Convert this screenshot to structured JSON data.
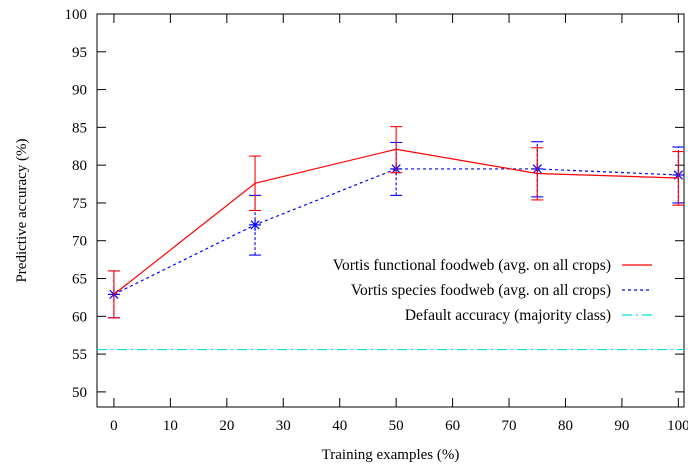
{
  "chart_data": {
    "type": "line",
    "title": "",
    "xlabel": "Training examples (%)",
    "ylabel": "Predictive accuracy (%)",
    "xlim": [
      -3,
      101
    ],
    "ylim": [
      48,
      100
    ],
    "xticks": [
      0,
      10,
      20,
      30,
      40,
      50,
      60,
      70,
      80,
      90,
      100
    ],
    "yticks": [
      50,
      55,
      60,
      65,
      70,
      75,
      80,
      85,
      90,
      95,
      100
    ],
    "grid": false,
    "legend_position": "lower-right",
    "series": [
      {
        "name": "Vortis functional foodweb (avg. on all crops)",
        "color": "#ff0000",
        "style": "solid",
        "marker": "none",
        "x": [
          0,
          25,
          50,
          75,
          100
        ],
        "y": [
          62.9,
          77.6,
          82.1,
          78.9,
          78.3
        ],
        "err_low": [
          59.8,
          74.0,
          79.0,
          75.4,
          74.7
        ],
        "err_high": [
          66.0,
          81.2,
          85.1,
          82.3,
          81.8
        ]
      },
      {
        "name": "Vortis species foodweb (avg. on all crops)",
        "color": "#0000ff",
        "style": "dashed",
        "marker": "asterisk",
        "x": [
          0,
          25,
          50,
          75,
          100
        ],
        "y": [
          62.9,
          72.1,
          79.5,
          79.5,
          78.7
        ],
        "err_low": [
          59.8,
          68.1,
          76.0,
          75.8,
          75.0
        ],
        "err_high": [
          66.0,
          76.0,
          83.0,
          83.1,
          82.4
        ]
      },
      {
        "name": "Default accuracy (majority class)",
        "color": "#00dddd",
        "style": "dash-dot",
        "marker": "none",
        "x": [
          -3,
          101
        ],
        "y": [
          55.6,
          55.6
        ]
      }
    ]
  }
}
